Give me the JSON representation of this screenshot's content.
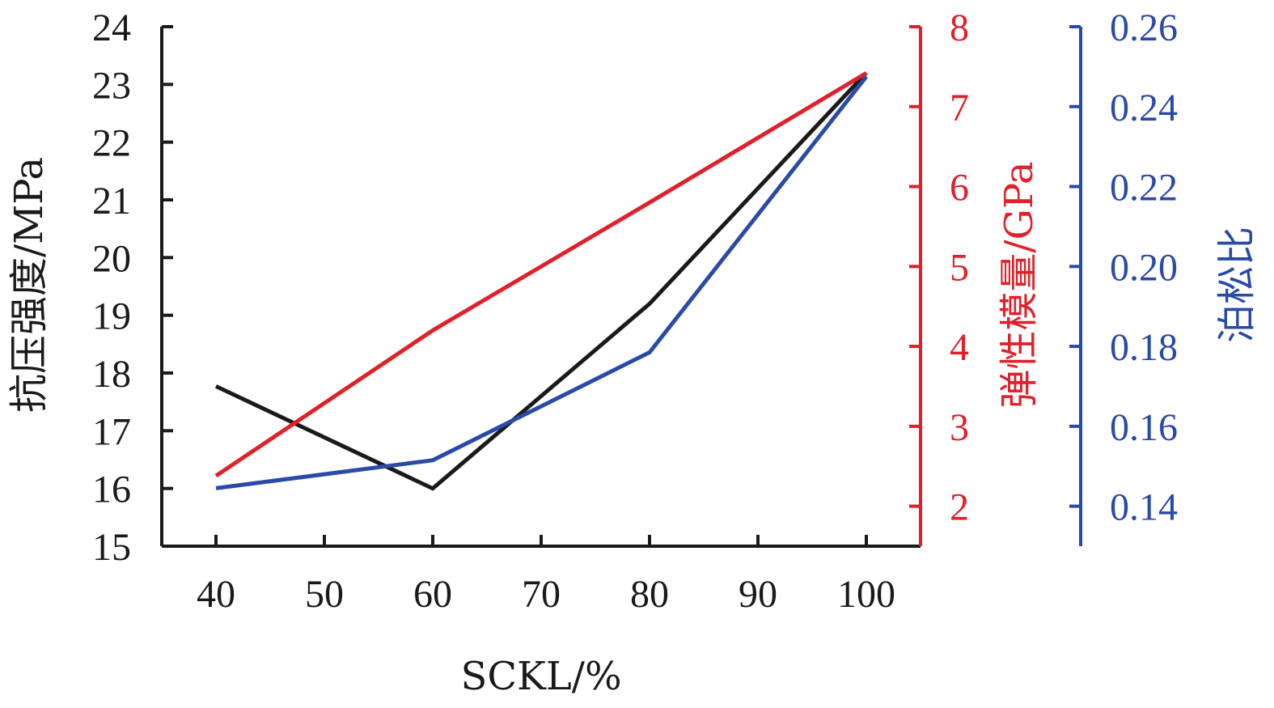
{
  "chart_data": {
    "type": "line",
    "x": [
      40,
      60,
      80,
      100
    ],
    "xlabel": "SCKL/%",
    "xticks": [
      "40",
      "50",
      "60",
      "70",
      "80",
      "90",
      "100"
    ],
    "xlim": [
      35,
      105
    ],
    "axes": {
      "left": {
        "label": "抗压强度/MPa",
        "ylim": [
          15,
          24
        ],
        "ticks": [
          "15",
          "16",
          "17",
          "18",
          "19",
          "20",
          "21",
          "22",
          "23",
          "24"
        ],
        "color": "#1a1a1a"
      },
      "right1": {
        "label": "弹性模量/GPa",
        "ylim": [
          1.5,
          8
        ],
        "ticks": [
          "2",
          "3",
          "4",
          "5",
          "6",
          "7",
          "8"
        ],
        "color": "#e0202a"
      },
      "right2": {
        "label": "泊松比",
        "ylim": [
          0.13,
          0.26
        ],
        "ticks": [
          "0.14",
          "0.16",
          "0.18",
          "0.20",
          "0.22",
          "0.24",
          "0.26"
        ],
        "color": "#2a4aa8"
      }
    },
    "series": [
      {
        "axis": "left",
        "color": "#1a1a1a",
        "values": [
          17.77,
          16.0,
          19.2,
          23.2
        ]
      },
      {
        "axis": "right1",
        "color": "#e0202a",
        "values": [
          2.38,
          4.2,
          5.8,
          7.42
        ]
      },
      {
        "axis": "right2",
        "color": "#2a4aa8",
        "values": [
          0.1445,
          0.1515,
          0.1785,
          0.2475
        ]
      }
    ],
    "grid": false,
    "legend": "none"
  }
}
